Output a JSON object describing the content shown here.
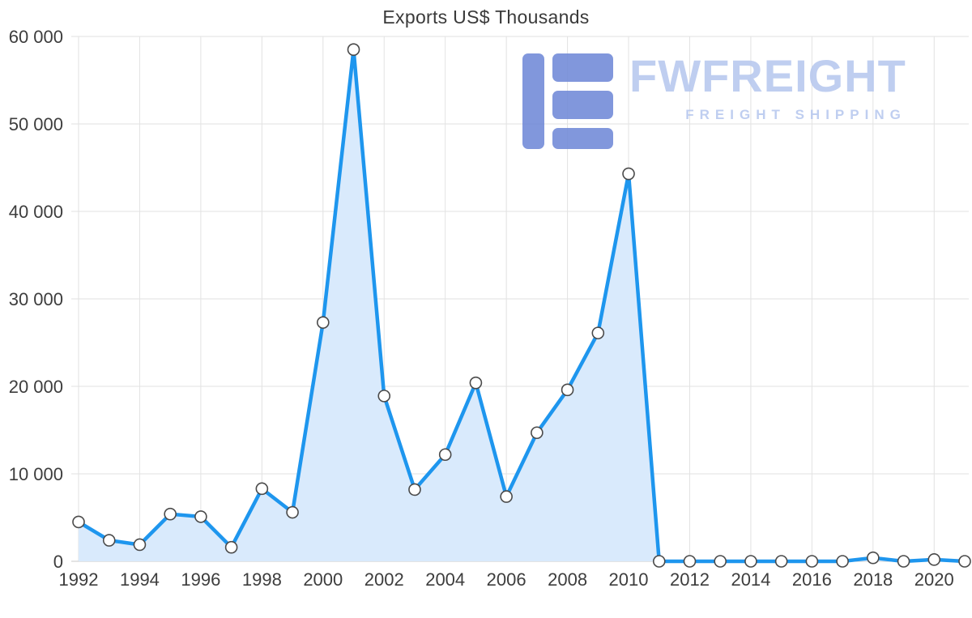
{
  "watermark": {
    "brand": "FWFREIGHT",
    "tagline": "FREIGHT SHIPPING"
  },
  "chart_data": {
    "type": "area",
    "title": "Exports US$ Thousands",
    "series_name": "Exports US$ Thousands",
    "x": [
      1992,
      1993,
      1994,
      1995,
      1996,
      1997,
      1998,
      1999,
      2000,
      2001,
      2002,
      2003,
      2004,
      2005,
      2006,
      2007,
      2008,
      2009,
      2010,
      2011,
      2012,
      2013,
      2014,
      2015,
      2016,
      2017,
      2018,
      2019,
      2020,
      2021
    ],
    "values": [
      4500,
      2400,
      1900,
      5400,
      5100,
      1600,
      8300,
      5600,
      27300,
      58500,
      18900,
      8200,
      12200,
      20400,
      7400,
      14700,
      19600,
      26100,
      44300,
      0,
      0,
      0,
      0,
      0,
      0,
      0,
      400,
      0,
      200,
      0
    ],
    "xlabel": "",
    "ylabel": "",
    "ylim": [
      0,
      60000
    ],
    "y_ticks": [
      0,
      10000,
      20000,
      30000,
      40000,
      50000,
      60000
    ],
    "y_tick_labels": [
      "0",
      "10 000",
      "20 000",
      "30 000",
      "40 000",
      "50 000",
      "60 000"
    ],
    "x_ticks": [
      1992,
      1994,
      1996,
      1998,
      2000,
      2002,
      2004,
      2006,
      2008,
      2010,
      2012,
      2014,
      2016,
      2018,
      2020
    ],
    "x_tick_labels": [
      "1992",
      "1994",
      "1996",
      "1998",
      "2000",
      "2002",
      "2004",
      "2006",
      "2008",
      "2010",
      "2012",
      "2014",
      "2016",
      "2018",
      "2020"
    ],
    "grid": true,
    "legend": false,
    "colors": {
      "line": "#1e96ee",
      "fill": "#d9eafc",
      "marker_fill": "#ffffff",
      "marker_stroke": "#4a4a4a",
      "grid": "#e2e2e2",
      "axis": "#c8c8c8",
      "text": "#3d3d3d"
    }
  }
}
